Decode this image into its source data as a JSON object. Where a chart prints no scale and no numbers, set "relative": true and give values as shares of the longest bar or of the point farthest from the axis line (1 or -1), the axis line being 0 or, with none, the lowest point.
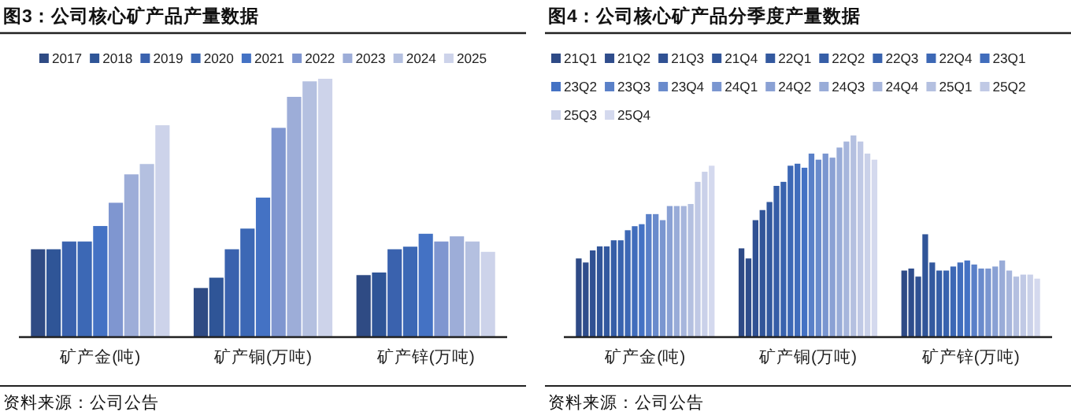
{
  "chart_data": [
    {
      "type": "bar",
      "title": "图3：公司核心矿产品产量数据",
      "categories": [
        "矿产金(吨)",
        "矿产铜(万吨)",
        "矿产锌(万吨)"
      ],
      "relative": true,
      "legend": "top",
      "annotations": [
        "资料来源：公司公告"
      ],
      "series": [
        {
          "name": "2017",
          "color": "#2f4b84",
          "values": [
            0.34,
            0.19,
            0.24
          ]
        },
        {
          "name": "2018",
          "color": "#2f5597",
          "values": [
            0.34,
            0.23,
            0.25
          ]
        },
        {
          "name": "2019",
          "color": "#3a62ae",
          "values": [
            0.37,
            0.34,
            0.34
          ]
        },
        {
          "name": "2020",
          "color": "#3c68b5",
          "values": [
            0.37,
            0.42,
            0.35
          ]
        },
        {
          "name": "2021",
          "color": "#4472c4",
          "values": [
            0.43,
            0.54,
            0.4
          ]
        },
        {
          "name": "2022",
          "color": "#7f96d0",
          "values": [
            0.52,
            0.81,
            0.37
          ]
        },
        {
          "name": "2023",
          "color": "#9dadd8",
          "values": [
            0.63,
            0.93,
            0.39
          ]
        },
        {
          "name": "2024",
          "color": "#b4c0e0",
          "values": [
            0.67,
            0.99,
            0.37
          ]
        },
        {
          "name": "2025",
          "color": "#cdd3ea",
          "values": [
            0.82,
            1,
            0.33
          ]
        }
      ]
    },
    {
      "type": "bar",
      "title": "图4：公司核心矿产品分季度产量数据",
      "categories": [
        "矿产金(吨)",
        "矿产铜(万吨)",
        "矿产锌(万吨)"
      ],
      "relative": true,
      "legend": "top",
      "annotations": [
        "资料来源：公司公告"
      ],
      "series": [
        {
          "name": "21Q1",
          "color": "#2e4a86",
          "values": [
            0.39,
            0.44,
            0.33
          ]
        },
        {
          "name": "21Q2",
          "color": "#2f4d8c",
          "values": [
            0.37,
            0.39,
            0.34
          ]
        },
        {
          "name": "21Q3",
          "color": "#305193",
          "values": [
            0.43,
            0.58,
            0.3
          ]
        },
        {
          "name": "21Q4",
          "color": "#315599",
          "values": [
            0.45,
            0.63,
            0.51
          ]
        },
        {
          "name": "22Q1",
          "color": "#33599f",
          "values": [
            0.45,
            0.67,
            0.37
          ]
        },
        {
          "name": "22Q2",
          "color": "#365ea7",
          "values": [
            0.48,
            0.75,
            0.33
          ]
        },
        {
          "name": "22Q3",
          "color": "#3963ae",
          "values": [
            0.48,
            0.77,
            0.33
          ]
        },
        {
          "name": "22Q4",
          "color": "#3d68b5",
          "values": [
            0.53,
            0.85,
            0.35
          ]
        },
        {
          "name": "23Q1",
          "color": "#416dbc",
          "values": [
            0.55,
            0.86,
            0.37
          ]
        },
        {
          "name": "23Q2",
          "color": "#4472c4",
          "values": [
            0.56,
            0.84,
            0.38
          ]
        },
        {
          "name": "23Q3",
          "color": "#5a80c8",
          "values": [
            0.61,
            0.91,
            0.36
          ]
        },
        {
          "name": "23Q4",
          "color": "#6a8bcc",
          "values": [
            0.61,
            0.88,
            0.34
          ]
        },
        {
          "name": "24Q1",
          "color": "#7a96d0",
          "values": [
            0.58,
            0.91,
            0.34
          ]
        },
        {
          "name": "24Q2",
          "color": "#8aa1d4",
          "values": [
            0.65,
            0.89,
            0.35
          ]
        },
        {
          "name": "24Q3",
          "color": "#99acd8",
          "values": [
            0.65,
            0.94,
            0.38
          ]
        },
        {
          "name": "24Q4",
          "color": "#a7b6dc",
          "values": [
            0.65,
            0.97,
            0.33
          ]
        },
        {
          "name": "25Q1",
          "color": "#b4c0e0",
          "values": [
            0.66,
            1,
            0.3
          ]
        },
        {
          "name": "25Q2",
          "color": "#c0c9e5",
          "values": [
            0.77,
            0.97,
            0.31
          ]
        },
        {
          "name": "25Q3",
          "color": "#cad1e9",
          "values": [
            0.82,
            0.91,
            0.31
          ]
        },
        {
          "name": "25Q4",
          "color": "#d4d9ee",
          "values": [
            0.85,
            0.88,
            0.29
          ]
        }
      ]
    }
  ]
}
